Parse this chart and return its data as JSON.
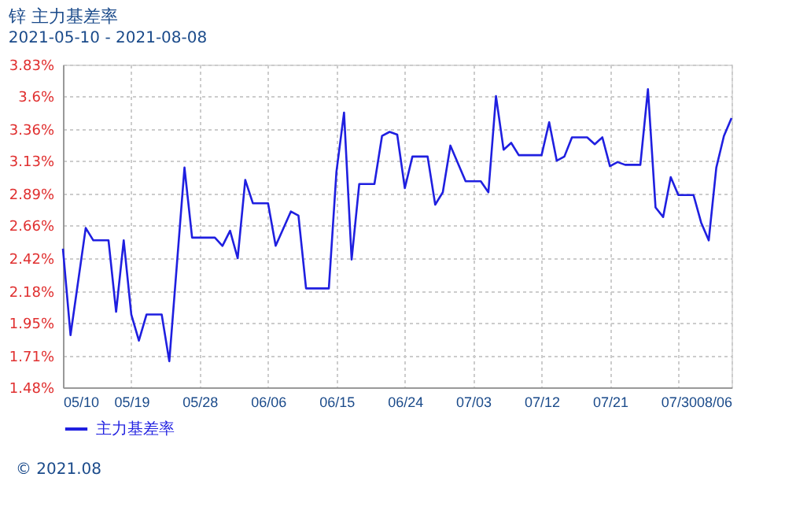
{
  "chart_data": {
    "type": "line",
    "title": "锌 主力基差率",
    "subtitle": "2021-05-10 - 2021-08-08",
    "x": [
      "2021-05-10",
      "2021-05-11",
      "2021-05-13",
      "2021-05-14",
      "2021-05-16",
      "2021-05-17",
      "2021-05-18",
      "2021-05-19",
      "2021-05-20",
      "2021-05-21",
      "2021-05-23",
      "2021-05-24",
      "2021-05-26",
      "2021-05-27",
      "2021-05-30",
      "2021-05-31",
      "2021-06-01",
      "2021-06-02",
      "2021-06-03",
      "2021-06-04",
      "2021-06-06",
      "2021-06-07",
      "2021-06-09",
      "2021-06-10",
      "2021-06-11",
      "2021-06-14",
      "2021-06-15",
      "2021-06-16",
      "2021-06-17",
      "2021-06-18",
      "2021-06-20",
      "2021-06-21",
      "2021-06-22",
      "2021-06-23",
      "2021-06-24",
      "2021-06-25",
      "2021-06-27",
      "2021-06-28",
      "2021-06-29",
      "2021-06-30",
      "2021-07-02",
      "2021-07-04",
      "2021-07-05",
      "2021-07-06",
      "2021-07-07",
      "2021-07-08",
      "2021-07-09",
      "2021-07-12",
      "2021-07-13",
      "2021-07-14",
      "2021-07-15",
      "2021-07-16",
      "2021-07-18",
      "2021-07-19",
      "2021-07-20",
      "2021-07-21",
      "2021-07-22",
      "2021-07-23",
      "2021-07-25",
      "2021-07-26",
      "2021-07-27",
      "2021-07-28",
      "2021-07-29",
      "2021-07-30",
      "2021-08-01",
      "2021-08-02",
      "2021-08-03",
      "2021-08-04",
      "2021-08-05",
      "2021-08-06"
    ],
    "series": [
      {
        "name": "主力基差率",
        "color": "#1f1fe0",
        "values": [
          2.49,
          1.86,
          2.64,
          2.55,
          2.55,
          2.03,
          2.55,
          2.01,
          1.82,
          2.01,
          2.01,
          1.67,
          3.08,
          2.57,
          2.57,
          2.51,
          2.62,
          2.42,
          2.99,
          2.82,
          2.82,
          2.51,
          2.76,
          2.73,
          2.2,
          2.2,
          3.05,
          3.48,
          2.41,
          2.96,
          2.96,
          3.31,
          3.34,
          3.32,
          2.93,
          3.16,
          3.16,
          2.81,
          2.9,
          3.24,
          2.98,
          2.98,
          2.9,
          3.6,
          3.21,
          3.26,
          3.17,
          3.17,
          3.41,
          3.13,
          3.16,
          3.3,
          3.3,
          3.25,
          3.3,
          3.09,
          3.12,
          3.1,
          3.1,
          3.65,
          2.79,
          2.72,
          3.01,
          2.88,
          2.88,
          2.68,
          2.55,
          3.08,
          3.31,
          3.44
        ]
      }
    ],
    "xlim": [
      "2021-05-10",
      "2021-08-06"
    ],
    "xticks": [
      {
        "value": "2021-05-10",
        "label": "05/10"
      },
      {
        "value": "2021-05-19",
        "label": "05/19"
      },
      {
        "value": "2021-05-28",
        "label": "05/28"
      },
      {
        "value": "2021-06-06",
        "label": "06/06"
      },
      {
        "value": "2021-06-15",
        "label": "06/15"
      },
      {
        "value": "2021-06-24",
        "label": "06/24"
      },
      {
        "value": "2021-07-03",
        "label": "07/03"
      },
      {
        "value": "2021-07-12",
        "label": "07/12"
      },
      {
        "value": "2021-07-21",
        "label": "07/21"
      },
      {
        "value": "2021-07-30",
        "label": "07/30"
      },
      {
        "value": "2021-08-06",
        "label": "08/06"
      }
    ],
    "ylim": [
      1.48,
      3.83
    ],
    "yticks": [
      {
        "value": 1.48,
        "label": "1.48%"
      },
      {
        "value": 1.71,
        "label": "1.71%"
      },
      {
        "value": 1.95,
        "label": "1.95%"
      },
      {
        "value": 2.18,
        "label": "2.18%"
      },
      {
        "value": 2.42,
        "label": "2.42%"
      },
      {
        "value": 2.66,
        "label": "2.66%"
      },
      {
        "value": 2.89,
        "label": "2.89%"
      },
      {
        "value": 3.13,
        "label": "3.13%"
      },
      {
        "value": 3.36,
        "label": "3.36%"
      },
      {
        "value": 3.6,
        "label": "3.6%"
      },
      {
        "value": 3.83,
        "label": "3.83%"
      }
    ],
    "grid": true,
    "legend": "bottom left",
    "marker": "none",
    "line_style": "solid",
    "annotations": [
      "© 2021.08"
    ]
  }
}
